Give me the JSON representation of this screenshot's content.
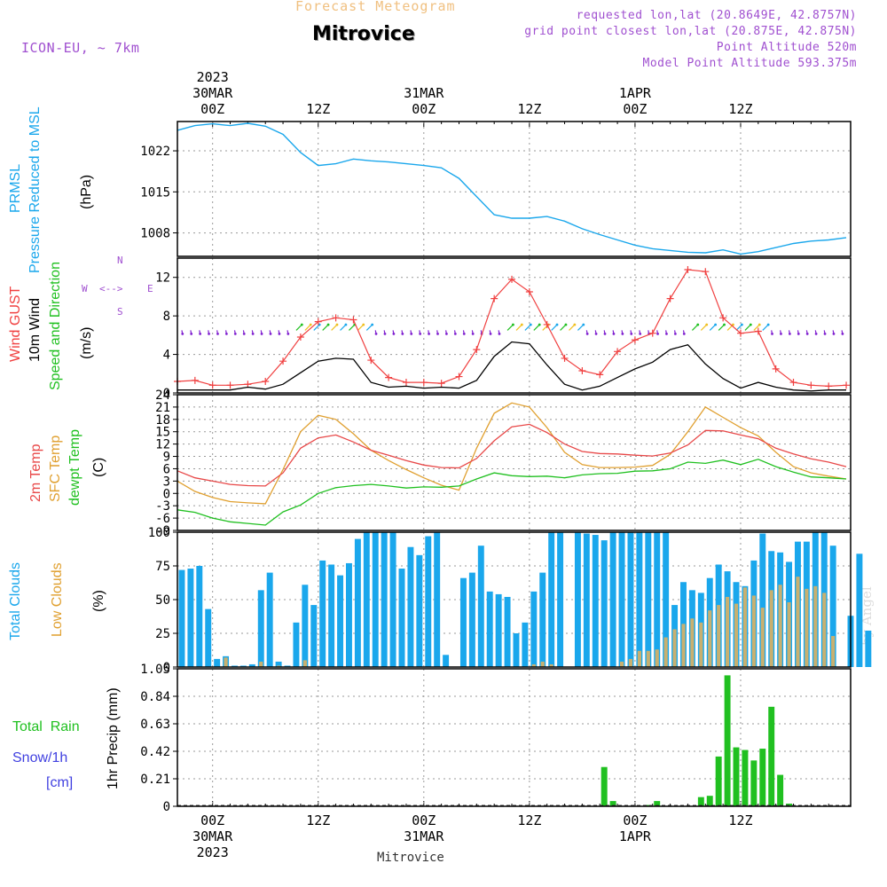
{
  "header": {
    "forecast_title": "Forecast Meteogram",
    "location": "Mitrovice",
    "model": "ICON-EU, ~ 7km",
    "requested": "requested lon,lat (20.8649E, 42.8757N)",
    "grid_point": "grid point closest lon,lat (20.875E, 42.875N)",
    "point_alt": "Point Altitude 520m",
    "model_alt": "Model Point Altitude 593.375m",
    "footer": "Mitrovice",
    "credit": "by Angel"
  },
  "time_axis": {
    "top_year": "2023",
    "bottom_year": "2023",
    "ticks": [
      {
        "h": 0,
        "label": "00Z",
        "date": "30MAR"
      },
      {
        "h": 12,
        "label": "12Z",
        "date": ""
      },
      {
        "h": 24,
        "label": "00Z",
        "date": "31MAR"
      },
      {
        "h": 36,
        "label": "12Z",
        "date": ""
      },
      {
        "h": 48,
        "label": "00Z",
        "date": "1APR"
      },
      {
        "h": 60,
        "label": "12Z",
        "date": ""
      }
    ]
  },
  "panel_labels": {
    "pressure": {
      "l1": "PRMSL",
      "l2": "Pressure Reduced to MSL",
      "unit": "(hPa)"
    },
    "wind": {
      "gust": "Wind GUST",
      "wind10": "10m Wind",
      "speed_dir": "Speed and Direction",
      "unit": "(m/s)",
      "compass_ns": "N",
      "compass_s": "S",
      "compass_w": "W",
      "compass_e": "E"
    },
    "temp": {
      "t2m": "2m Temp",
      "sfc": "SFC Temp",
      "dew": "dewpt Temp",
      "unit": "(C)"
    },
    "clouds": {
      "total": "Total Clouds",
      "low": "Low Clouds",
      "unit": "(%)"
    },
    "precip": {
      "rain": "Total  Rain",
      "snow": "Snow/1h",
      "cm": "[cm]",
      "ylabel": "1hr Precip (mm)"
    }
  },
  "colors": {
    "pressure": "#1aa7ec",
    "gust": "#f04040",
    "wind10": "#000000",
    "t2m": "#e84848",
    "sfc": "#e0a030",
    "dew": "#20c020",
    "total_clouds": "#1aa7ec",
    "low_clouds": "#c8b070",
    "rain": "#20c020",
    "purple": "#a050d0",
    "arrow_colors": [
      "#20c020",
      "#f0c020",
      "#1aa7ec",
      "#8020d0"
    ]
  },
  "chart_data": [
    {
      "type": "line",
      "name": "pressure",
      "ylim": [
        1004,
        1027
      ],
      "yticks": [
        1008,
        1015,
        1022
      ],
      "x": [
        -4,
        -2,
        0,
        2,
        4,
        6,
        8,
        10,
        12,
        14,
        16,
        18,
        20,
        22,
        24,
        26,
        28,
        30,
        32,
        34,
        36,
        38,
        40,
        42,
        44,
        46,
        48,
        50,
        52,
        54,
        56,
        58,
        60,
        62,
        64,
        66,
        68,
        70,
        72
      ],
      "series": [
        {
          "values": [
            1025.5,
            1026.3,
            1026.6,
            1026.3,
            1026.7,
            1026.2,
            1024.8,
            1021.7,
            1019.5,
            1019.8,
            1020.6,
            1020.3,
            1020.1,
            1019.8,
            1019.5,
            1019.1,
            1017.3,
            1014.2,
            1011.1,
            1010.5,
            1010.5,
            1010.8,
            1010.0,
            1008.7,
            1007.7,
            1006.8,
            1005.9,
            1005.3,
            1005.0,
            1004.7,
            1004.6,
            1005.1,
            1004.4,
            1004.8,
            1005.5,
            1006.2,
            1006.6,
            1006.8,
            1007.2
          ]
        }
      ]
    },
    {
      "type": "line",
      "name": "wind",
      "ylim": [
        0,
        14
      ],
      "yticks": [
        0,
        4,
        8,
        12
      ],
      "x": [
        -4,
        -2,
        0,
        2,
        4,
        6,
        8,
        10,
        12,
        14,
        16,
        18,
        20,
        22,
        24,
        26,
        28,
        30,
        32,
        34,
        36,
        38,
        40,
        42,
        44,
        46,
        48,
        50,
        52,
        54,
        56,
        58,
        60,
        62,
        64,
        66,
        68,
        70,
        72
      ],
      "series": [
        {
          "name": "Wind GUST",
          "values": [
            1.2,
            1.3,
            0.8,
            0.8,
            0.9,
            1.2,
            3.3,
            5.8,
            7.4,
            7.8,
            7.6,
            3.4,
            1.6,
            1.1,
            1.1,
            1.0,
            1.7,
            4.5,
            9.8,
            11.8,
            10.5,
            7.1,
            3.6,
            2.3,
            1.9,
            4.3,
            5.5,
            6.2,
            9.8,
            12.8,
            12.6,
            7.8,
            6.2,
            6.4,
            2.5,
            1.1,
            0.8,
            0.7,
            0.8
          ]
        },
        {
          "name": "10m Wind",
          "values": [
            0.3,
            0.3,
            0.3,
            0.3,
            0.6,
            0.4,
            0.9,
            2.1,
            3.3,
            3.6,
            3.5,
            1.1,
            0.6,
            0.7,
            0.5,
            0.6,
            0.5,
            1.3,
            3.8,
            5.3,
            5.1,
            2.9,
            0.9,
            0.3,
            0.7,
            1.6,
            2.5,
            3.2,
            4.5,
            5.0,
            3.0,
            1.5,
            0.5,
            1.1,
            0.6,
            0.3,
            0.2,
            0.3,
            0.3
          ]
        }
      ],
      "arrow_level": 6.5
    },
    {
      "type": "line",
      "name": "temperature",
      "ylim": [
        -9,
        24
      ],
      "yticks": [
        -9,
        -6,
        -3,
        0,
        3,
        6,
        9,
        12,
        15,
        18,
        21,
        24
      ],
      "x": [
        -4,
        -2,
        0,
        2,
        4,
        6,
        8,
        10,
        12,
        14,
        16,
        18,
        20,
        22,
        24,
        26,
        28,
        30,
        32,
        34,
        36,
        38,
        40,
        42,
        44,
        46,
        48,
        50,
        52,
        54,
        56,
        58,
        60,
        62,
        64,
        66,
        68,
        70,
        72
      ],
      "series": [
        {
          "name": "2m Temp",
          "values": [
            5.5,
            3.8,
            3.0,
            2.2,
            1.9,
            1.8,
            5.0,
            11.0,
            13.5,
            14.2,
            12.5,
            10.5,
            9.3,
            8.0,
            6.9,
            6.3,
            6.2,
            8.5,
            12.8,
            16.2,
            16.8,
            14.8,
            12.0,
            10.2,
            9.7,
            9.6,
            9.3,
            9.1,
            9.8,
            11.8,
            15.3,
            15.2,
            14.2,
            13.3,
            11.0,
            9.6,
            8.4,
            7.6,
            6.5
          ]
        },
        {
          "name": "SFC Temp",
          "values": [
            3.0,
            0.5,
            -1.0,
            -2.0,
            -2.3,
            -2.5,
            5.8,
            15.0,
            19.0,
            18.0,
            14.5,
            10.5,
            8.0,
            5.8,
            3.8,
            2.0,
            0.8,
            11.0,
            19.5,
            22.0,
            21.0,
            16.0,
            10.0,
            7.0,
            6.3,
            6.3,
            6.4,
            6.8,
            9.5,
            15.0,
            21.0,
            18.5,
            16.0,
            14.0,
            10.0,
            6.5,
            5.0,
            4.2,
            3.5
          ]
        },
        {
          "name": "dewpt Temp",
          "values": [
            -4.0,
            -4.6,
            -6.0,
            -6.9,
            -7.3,
            -7.7,
            -4.5,
            -2.8,
            0.0,
            1.4,
            1.9,
            2.2,
            1.8,
            1.3,
            1.6,
            1.5,
            1.8,
            3.5,
            5.0,
            4.3,
            4.1,
            4.2,
            3.8,
            4.5,
            4.8,
            4.9,
            5.4,
            5.5,
            6.0,
            7.6,
            7.3,
            8.1,
            7.0,
            8.3,
            6.5,
            5.2,
            4.0,
            3.8,
            3.5
          ]
        }
      ]
    },
    {
      "type": "bar",
      "name": "clouds",
      "ylim": [
        0,
        100
      ],
      "yticks": [
        0,
        25,
        50,
        75,
        100
      ],
      "x_start": -3.5,
      "x_step": 1,
      "series": [
        {
          "name": "Total Clouds",
          "values": [
            72,
            73,
            75,
            43,
            6,
            8,
            1,
            1,
            2,
            57,
            70,
            4,
            1,
            33,
            61,
            46,
            79,
            76,
            68,
            77,
            95,
            100,
            100,
            100,
            100,
            73,
            89,
            83,
            97,
            100,
            9,
            0,
            66,
            70,
            90,
            56,
            54,
            52,
            25,
            33,
            56,
            70,
            100,
            100,
            0,
            100,
            99,
            98,
            94,
            100,
            100,
            100,
            100,
            100,
            100,
            100,
            46,
            63,
            57,
            55,
            66,
            76,
            71,
            63,
            60,
            79,
            99,
            86,
            85,
            78,
            93,
            93,
            100,
            100,
            90,
            0,
            38,
            84,
            27
          ]
        },
        {
          "name": "Low Clouds",
          "values": [
            0,
            0,
            0,
            0,
            0,
            7,
            0,
            0,
            0,
            4,
            0,
            1,
            0,
            0,
            5,
            0,
            0,
            0,
            0,
            0,
            0,
            0,
            0,
            0,
            0,
            0,
            0,
            0,
            0,
            0,
            0,
            0,
            0,
            0,
            0,
            0,
            0,
            0,
            0,
            0,
            2,
            4,
            2,
            0,
            0,
            0,
            0,
            0,
            0,
            0,
            4,
            6,
            12,
            12,
            13,
            22,
            28,
            32,
            36,
            33,
            42,
            46,
            52,
            47,
            59,
            53,
            44,
            57,
            61,
            48,
            67,
            58,
            60,
            55,
            23,
            0,
            0,
            0,
            0
          ]
        }
      ]
    },
    {
      "type": "bar",
      "name": "precipitation",
      "ylim": [
        0,
        1.05
      ],
      "yticks": [
        0,
        0.21,
        0.42,
        0.63,
        0.84,
        1.05
      ],
      "ytick_labels": [
        "0",
        "0.21",
        "0.42",
        "0.63",
        "0.84",
        "1.05"
      ],
      "x": [
        44.5,
        45.5,
        49.5,
        50.5,
        55.5,
        56.5,
        57.5,
        58.5,
        59.5,
        60.5,
        61.5,
        62.5,
        63.5,
        64.5,
        65.5
      ],
      "series": [
        {
          "name": "Total Rain",
          "values": [
            0.3,
            0.04,
            0.01,
            0.04,
            0.07,
            0.08,
            0.38,
            1.0,
            0.45,
            0.43,
            0.35,
            0.44,
            0.76,
            0.24,
            0.02
          ]
        }
      ]
    }
  ]
}
